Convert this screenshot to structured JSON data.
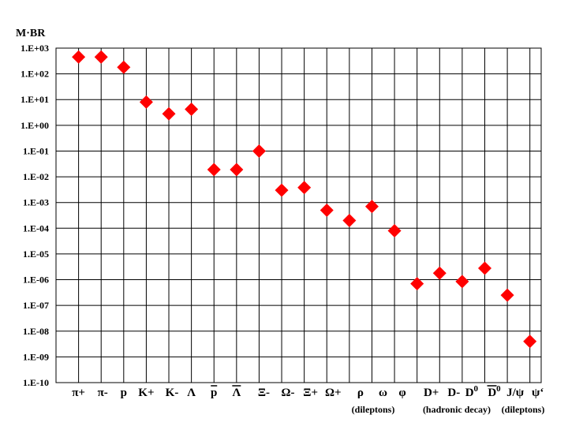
{
  "chart_data": {
    "type": "scatter",
    "ylabel": "M·BR",
    "y_scale": "log",
    "ylim": [
      1e-10,
      1000
    ],
    "y_ticks": [
      "1.E-10",
      "1.E-09",
      "1.E-08",
      "1.E-07",
      "1.E-06",
      "1.E-05",
      "1.E-04",
      "1.E-03",
      "1.E-02",
      "1.E-01",
      "1.E+00",
      "1.E+01",
      "1.E+02",
      "1.E+03"
    ],
    "marker": "diamond",
    "marker_color": "#ff0000",
    "grid": true,
    "categories": [
      "π+",
      "π-",
      "p",
      "K+",
      "K-",
      "Λ",
      "p̄",
      "Λ̄",
      "Ξ-",
      "Ω-",
      "Ξ+",
      "Ω+",
      "ρ",
      "ω",
      "φ",
      "D+",
      "D-",
      "D0",
      "D̄0",
      "J/ψ",
      "ψ‘"
    ],
    "values": [
      450,
      450,
      180,
      8,
      2.8,
      4.2,
      0.019,
      0.019,
      0.1,
      0.003,
      0.0038,
      0.0005,
      0.0002,
      0.0007,
      8e-05,
      7e-07,
      1.8e-06,
      8.5e-07,
      2.8e-06,
      2.5e-07,
      4e-09
    ],
    "annotations": [
      "(dileptons)",
      "(hadronic decay)",
      "(dileptons)"
    ]
  }
}
